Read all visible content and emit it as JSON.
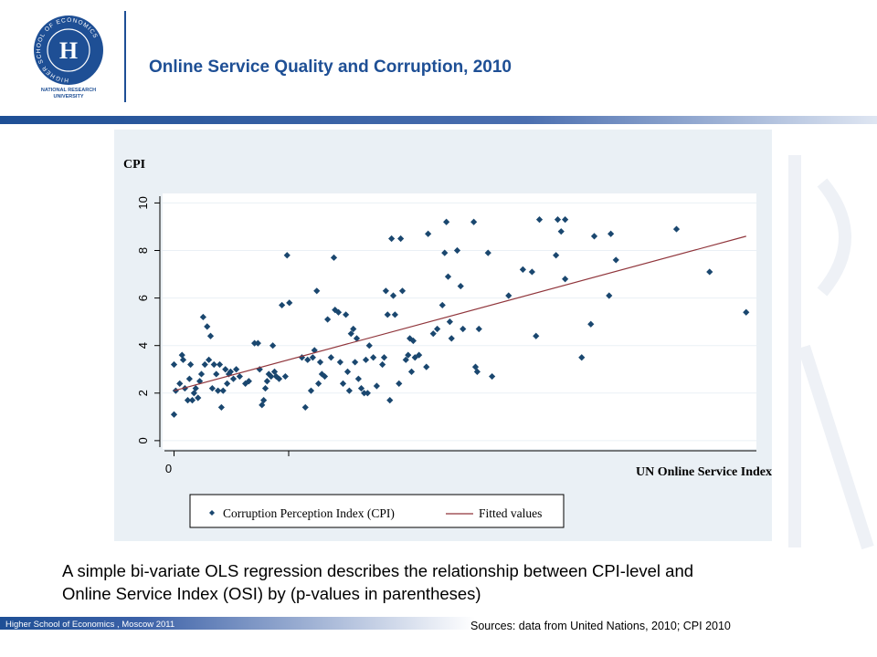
{
  "header": {
    "title": "Online Service Quality and Corruption, 2010",
    "logo_ring": "HIGHER SCHOOL OF ECONOMICS",
    "logo_caption": [
      "NATIONAL RESEARCH",
      "UNIVERSITY"
    ]
  },
  "chart_data": {
    "type": "scatter",
    "ylabel": "CPI",
    "xlabel": "UN Online Service Index",
    "xlim": [
      -2,
      102
    ],
    "xticks": [
      0
    ],
    "ylim": [
      -0.35,
      10.4
    ],
    "yticks": [
      0,
      2,
      4,
      6,
      8,
      10
    ],
    "grid": true,
    "series": [
      {
        "name": "Corruption Perception Index (CPI)",
        "color": "#1a476f",
        "style": "markers",
        "x": [
          0,
          0,
          0.3,
          1.0,
          1.4,
          1.6,
          1.9,
          2.4,
          2.7,
          2.9,
          3.2,
          3.5,
          3.8,
          4.2,
          4.5,
          4.8,
          5.1,
          5.4,
          5.8,
          6.1,
          6.4,
          6.7,
          7.0,
          7.4,
          7.7,
          8.0,
          8.3,
          8.6,
          9.0,
          9.3,
          9.6,
          9.9,
          10.4,
          10.9,
          11.5,
          12.5,
          13.1,
          14.1,
          14.7,
          15.0,
          15.4,
          15.7,
          16.0,
          16.3,
          16.6,
          17.0,
          17.3,
          17.6,
          17.9,
          18.4,
          18.9,
          19.5,
          19.8,
          20.2,
          22.4,
          23.0,
          23.4,
          24.0,
          24.3,
          24.6,
          25.0,
          25.3,
          25.6,
          25.9,
          26.4,
          26.9,
          27.5,
          28.0,
          28.2,
          28.8,
          29.1,
          29.6,
          30.1,
          30.4,
          30.7,
          31.0,
          31.4,
          31.7,
          32.0,
          32.3,
          32.8,
          33.3,
          33.6,
          33.9,
          34.2,
          34.9,
          35.5,
          36.5,
          36.8,
          37.1,
          37.4,
          37.8,
          38.1,
          38.4,
          38.7,
          39.4,
          39.7,
          40.0,
          40.6,
          41.0,
          41.3,
          41.6,
          41.9,
          42.2,
          42.9,
          44.2,
          44.5,
          45.4,
          46.1,
          47.0,
          47.4,
          47.7,
          48.0,
          48.3,
          48.6,
          49.6,
          50.2,
          50.6,
          52.5,
          52.8,
          53.1,
          53.4,
          55.0,
          55.7,
          58.6,
          61.1,
          62.7,
          63.4,
          64.0,
          66.9,
          67.2,
          67.8,
          68.5,
          68.5,
          71.4,
          73.0,
          73.6,
          76.2,
          76.5,
          77.4,
          88.0,
          93.8,
          100.2
        ],
        "values": [
          1.1,
          3.2,
          2.1,
          2.4,
          3.6,
          3.4,
          2.2,
          1.7,
          2.6,
          3.2,
          1.7,
          2.0,
          2.2,
          1.8,
          2.5,
          2.8,
          5.2,
          3.2,
          4.8,
          3.4,
          4.4,
          2.2,
          3.2,
          2.8,
          2.1,
          3.2,
          1.4,
          2.1,
          3.0,
          2.4,
          2.8,
          2.9,
          2.6,
          3.0,
          2.7,
          2.4,
          2.5,
          4.1,
          4.1,
          3.0,
          1.5,
          1.7,
          2.2,
          2.5,
          2.8,
          2.7,
          4.0,
          2.9,
          2.7,
          2.6,
          5.7,
          2.7,
          7.8,
          5.8,
          3.5,
          1.4,
          3.4,
          2.1,
          3.5,
          3.8,
          6.3,
          2.4,
          3.3,
          2.8,
          2.7,
          5.1,
          3.5,
          7.7,
          5.5,
          5.4,
          3.3,
          2.4,
          5.3,
          2.9,
          2.1,
          4.5,
          4.7,
          3.3,
          4.3,
          2.6,
          2.2,
          2.0,
          3.4,
          2.0,
          4.0,
          3.5,
          2.3,
          3.2,
          3.5,
          6.3,
          5.3,
          1.7,
          8.5,
          6.1,
          5.3,
          2.4,
          8.5,
          6.3,
          3.4,
          3.6,
          4.3,
          2.9,
          4.2,
          3.5,
          3.6,
          3.1,
          8.7,
          4.5,
          4.7,
          5.7,
          7.9,
          9.2,
          6.9,
          5.0,
          4.3,
          8.0,
          6.5,
          4.7,
          9.2,
          3.1,
          2.9,
          4.7,
          7.9,
          2.7,
          6.1,
          7.2,
          7.1,
          4.4,
          9.3,
          7.8,
          9.3,
          8.8,
          9.3,
          6.8,
          3.5,
          4.9,
          8.6,
          6.1,
          8.7,
          7.6,
          8.9,
          7.1,
          5.4
        ]
      },
      {
        "name": "Fitted values",
        "color": "#90353b",
        "style": "line",
        "x": [
          0,
          100.2
        ],
        "values": [
          2.1,
          8.6
        ]
      }
    ]
  },
  "caption": [
    "A simple bi-variate OLS regression describes the relationship between CPI-level and",
    "Online Service Index (OSI) by (p-values in parentheses)"
  ],
  "footer": {
    "left": "Higher School of Economics , Moscow 2011",
    "source": "Sources: data from United Nations, 2010; CPI 2010"
  }
}
